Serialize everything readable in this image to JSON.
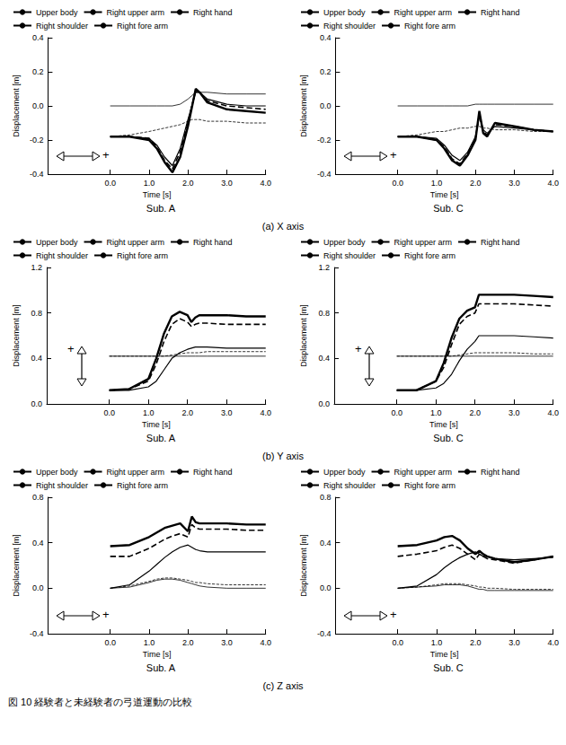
{
  "caption": "図 10 経験者と未経験者の弓道運動の比較",
  "row_captions": [
    "(a) X axis",
    "(b) Y axis",
    "(c) Z axis"
  ],
  "chart_data": [
    {
      "type": "line",
      "title": "Sub. A",
      "x_label": "Time [s]",
      "y_label": "Displacement [m]",
      "annotation": "+",
      "legend": "top",
      "grid": false,
      "x": [
        0,
        0.5,
        1.0,
        1.2,
        1.4,
        1.6,
        1.8,
        2.0,
        2.1,
        2.2,
        2.3,
        2.5,
        3.0,
        3.5,
        4.0
      ],
      "xlim": [
        -1.6,
        4.0
      ],
      "xticks": [
        {
          "value": 0,
          "label": "0.0"
        },
        {
          "value": 1,
          "label": "1.0"
        },
        {
          "value": 2,
          "label": "2.0"
        },
        {
          "value": 3,
          "label": "3.0"
        },
        {
          "value": 4,
          "label": "4.0"
        }
      ],
      "ylim": [
        -0.4,
        0.4
      ],
      "yticks": [
        -0.4,
        -0.2,
        {
          "value": 0,
          "label": "0.0"
        },
        0.2,
        0.4
      ],
      "series": [
        {
          "name": "Upper body",
          "color": "#000000",
          "line_style": "solid",
          "values": [
            0,
            0,
            0,
            0,
            0,
            0,
            0.01,
            0.04,
            0.06,
            0.08,
            0.08,
            0.08,
            0.07,
            0.07,
            0.07
          ]
        },
        {
          "name": "Right upper arm",
          "color": "#000000",
          "line_style": "solid",
          "values": [
            -0.18,
            -0.18,
            -0.19,
            -0.23,
            -0.3,
            -0.35,
            -0.25,
            -0.08,
            0.0,
            0.08,
            0.08,
            0.04,
            0.01,
            0.0,
            0.0
          ]
        },
        {
          "name": "Right hand",
          "color": "#000000",
          "line_style": "solid",
          "values": [
            -0.18,
            -0.18,
            -0.2,
            -0.25,
            -0.33,
            -0.39,
            -0.3,
            -0.12,
            -0.01,
            0.1,
            0.08,
            0.02,
            -0.02,
            -0.03,
            -0.04
          ]
        },
        {
          "name": "Right shoulder",
          "color": "#000000",
          "line_style": "dashed",
          "values": [
            -0.18,
            -0.17,
            -0.15,
            -0.14,
            -0.13,
            -0.12,
            -0.11,
            -0.09,
            -0.08,
            -0.08,
            -0.08,
            -0.09,
            -0.09,
            -0.1,
            -0.1
          ]
        },
        {
          "name": "Right fore arm",
          "color": "#000000",
          "line_style": "dashed",
          "values": [
            -0.18,
            -0.18,
            -0.19,
            -0.24,
            -0.32,
            -0.37,
            -0.27,
            -0.1,
            0.0,
            0.09,
            0.08,
            0.03,
            0.0,
            -0.01,
            -0.02
          ]
        }
      ]
    },
    {
      "type": "line",
      "title": "Sub. C",
      "x_label": "Time [s]",
      "y_label": "Displacement [m]",
      "annotation": "+",
      "legend": "top",
      "grid": false,
      "x": [
        0,
        0.5,
        1.0,
        1.2,
        1.4,
        1.6,
        1.8,
        2.0,
        2.1,
        2.2,
        2.3,
        2.5,
        3.0,
        3.5,
        4.0
      ],
      "xlim": [
        -1.6,
        4.0
      ],
      "xticks": [
        {
          "value": 0,
          "label": "0.0"
        },
        {
          "value": 1,
          "label": "1.0"
        },
        {
          "value": 2,
          "label": "2.0"
        },
        {
          "value": 3,
          "label": "3.0"
        },
        {
          "value": 4,
          "label": "4.0"
        }
      ],
      "ylim": [
        -0.4,
        0.4
      ],
      "yticks": [
        -0.4,
        -0.2,
        {
          "value": 0,
          "label": "0.0"
        },
        0.2,
        0.4
      ],
      "series": [
        {
          "name": "Upper body",
          "color": "#000000",
          "line_style": "solid",
          "values": [
            0,
            0,
            0,
            0,
            0,
            0,
            0,
            0.01,
            0.01,
            0.01,
            0.01,
            0.01,
            0.01,
            0.01,
            0.01
          ]
        },
        {
          "name": "Right upper arm",
          "color": "#000000",
          "line_style": "solid",
          "values": [
            -0.18,
            -0.18,
            -0.19,
            -0.23,
            -0.29,
            -0.32,
            -0.27,
            -0.18,
            -0.06,
            -0.14,
            -0.16,
            -0.12,
            -0.13,
            -0.14,
            -0.15
          ]
        },
        {
          "name": "Right hand",
          "color": "#000000",
          "line_style": "solid",
          "values": [
            -0.18,
            -0.18,
            -0.2,
            -0.25,
            -0.32,
            -0.35,
            -0.29,
            -0.2,
            -0.03,
            -0.16,
            -0.18,
            -0.1,
            -0.12,
            -0.14,
            -0.15
          ]
        },
        {
          "name": "Right shoulder",
          "color": "#000000",
          "line_style": "dashed",
          "values": [
            -0.18,
            -0.17,
            -0.15,
            -0.15,
            -0.14,
            -0.13,
            -0.13,
            -0.12,
            -0.12,
            -0.13,
            -0.13,
            -0.14,
            -0.14,
            -0.15,
            -0.15
          ]
        },
        {
          "name": "Right fore arm",
          "color": "#000000",
          "line_style": "dashed",
          "values": [
            -0.18,
            -0.18,
            -0.2,
            -0.24,
            -0.31,
            -0.34,
            -0.28,
            -0.19,
            -0.05,
            -0.15,
            -0.17,
            -0.11,
            -0.12,
            -0.14,
            -0.15
          ]
        }
      ]
    },
    {
      "type": "line",
      "title": "Sub. A",
      "x_label": "Time [s]",
      "y_label": "Displacement [m]",
      "annotation": "+",
      "legend": "top",
      "grid": false,
      "x": [
        0,
        0.5,
        1.0,
        1.2,
        1.4,
        1.6,
        1.8,
        2.0,
        2.1,
        2.2,
        2.3,
        2.5,
        3.0,
        3.5,
        4.0
      ],
      "xlim": [
        -1.6,
        4.0
      ],
      "xticks": [
        {
          "value": 0,
          "label": "0.0"
        },
        {
          "value": 1,
          "label": "1.0"
        },
        {
          "value": 2,
          "label": "2.0"
        },
        {
          "value": 3,
          "label": "3.0"
        },
        {
          "value": 4,
          "label": "4.0"
        }
      ],
      "ylim": [
        0,
        1.2
      ],
      "yticks": [
        {
          "value": 0,
          "label": "0.0"
        },
        0.4,
        0.8,
        1.2
      ],
      "series": [
        {
          "name": "Upper body",
          "color": "#000000",
          "line_style": "solid",
          "values": [
            0.42,
            0.42,
            0.42,
            0.42,
            0.42,
            0.42,
            0.42,
            0.42,
            0.42,
            0.42,
            0.42,
            0.42,
            0.42,
            0.42,
            0.42
          ]
        },
        {
          "name": "Right upper arm",
          "color": "#000000",
          "line_style": "solid",
          "values": [
            0.12,
            0.12,
            0.15,
            0.2,
            0.3,
            0.4,
            0.45,
            0.48,
            0.49,
            0.5,
            0.5,
            0.5,
            0.49,
            0.49,
            0.49
          ]
        },
        {
          "name": "Right hand",
          "color": "#000000",
          "line_style": "solid",
          "values": [
            0.12,
            0.13,
            0.22,
            0.4,
            0.62,
            0.77,
            0.81,
            0.78,
            0.72,
            0.76,
            0.78,
            0.78,
            0.78,
            0.77,
            0.77
          ]
        },
        {
          "name": "Right shoulder",
          "color": "#000000",
          "line_style": "dashed",
          "values": [
            0.42,
            0.42,
            0.42,
            0.42,
            0.42,
            0.43,
            0.44,
            0.45,
            0.45,
            0.45,
            0.45,
            0.46,
            0.46,
            0.46,
            0.46
          ]
        },
        {
          "name": "Right fore arm",
          "color": "#000000",
          "line_style": "dashed",
          "values": [
            0.12,
            0.13,
            0.2,
            0.35,
            0.55,
            0.7,
            0.75,
            0.72,
            0.68,
            0.7,
            0.71,
            0.71,
            0.7,
            0.7,
            0.7
          ]
        }
      ]
    },
    {
      "type": "line",
      "title": "Sub. C",
      "x_label": "Time [s]",
      "y_label": "Displacement [m]",
      "annotation": "+",
      "legend": "top",
      "grid": false,
      "x": [
        0,
        0.5,
        1.0,
        1.2,
        1.4,
        1.6,
        1.8,
        2.0,
        2.1,
        2.2,
        2.3,
        2.5,
        3.0,
        3.5,
        4.0
      ],
      "xlim": [
        -1.6,
        4.0
      ],
      "xticks": [
        {
          "value": 0,
          "label": "0.0"
        },
        {
          "value": 1,
          "label": "1.0"
        },
        {
          "value": 2,
          "label": "2.0"
        },
        {
          "value": 3,
          "label": "3.0"
        },
        {
          "value": 4,
          "label": "4.0"
        }
      ],
      "ylim": [
        0,
        1.2
      ],
      "yticks": [
        {
          "value": 0,
          "label": "0.0"
        },
        0.4,
        0.8,
        1.2
      ],
      "series": [
        {
          "name": "Upper body",
          "color": "#000000",
          "line_style": "solid",
          "values": [
            0.42,
            0.42,
            0.42,
            0.42,
            0.42,
            0.42,
            0.42,
            0.42,
            0.42,
            0.42,
            0.42,
            0.42,
            0.42,
            0.42,
            0.42
          ]
        },
        {
          "name": "Right upper arm",
          "color": "#000000",
          "line_style": "solid",
          "values": [
            0.12,
            0.12,
            0.14,
            0.18,
            0.26,
            0.38,
            0.48,
            0.55,
            0.6,
            0.6,
            0.6,
            0.6,
            0.6,
            0.59,
            0.58
          ]
        },
        {
          "name": "Right hand",
          "color": "#000000",
          "line_style": "solid",
          "values": [
            0.12,
            0.12,
            0.2,
            0.36,
            0.58,
            0.75,
            0.82,
            0.85,
            0.96,
            0.96,
            0.96,
            0.96,
            0.96,
            0.95,
            0.94
          ]
        },
        {
          "name": "Right shoulder",
          "color": "#000000",
          "line_style": "dashed",
          "values": [
            0.42,
            0.42,
            0.42,
            0.42,
            0.42,
            0.43,
            0.44,
            0.45,
            0.45,
            0.45,
            0.45,
            0.45,
            0.45,
            0.44,
            0.44
          ]
        },
        {
          "name": "Right fore arm",
          "color": "#000000",
          "line_style": "dashed",
          "values": [
            0.12,
            0.12,
            0.2,
            0.32,
            0.52,
            0.7,
            0.77,
            0.8,
            0.88,
            0.88,
            0.88,
            0.88,
            0.88,
            0.87,
            0.86
          ]
        }
      ]
    },
    {
      "type": "line",
      "title": "Sub. A",
      "x_label": "Time [s]",
      "y_label": "Displacement [m]",
      "annotation": "+",
      "legend": "top",
      "grid": false,
      "x": [
        0,
        0.5,
        1.0,
        1.2,
        1.4,
        1.6,
        1.8,
        2.0,
        2.1,
        2.2,
        2.3,
        2.5,
        3.0,
        3.5,
        4.0
      ],
      "xlim": [
        -1.6,
        4.0
      ],
      "xticks": [
        {
          "value": 0,
          "label": "0.0"
        },
        {
          "value": 1,
          "label": "1.0"
        },
        {
          "value": 2,
          "label": "2.0"
        },
        {
          "value": 3,
          "label": "3.0"
        },
        {
          "value": 4,
          "label": "4.0"
        }
      ],
      "ylim": [
        -0.4,
        0.8
      ],
      "yticks": [
        -0.4,
        {
          "value": 0,
          "label": "0.0"
        },
        0.4,
        0.8
      ],
      "series": [
        {
          "name": "Upper body",
          "color": "#000000",
          "line_style": "solid",
          "values": [
            0,
            0.01,
            0.05,
            0.07,
            0.08,
            0.08,
            0.07,
            0.05,
            0.04,
            0.03,
            0.02,
            0.01,
            0.0,
            0.0,
            0.0
          ]
        },
        {
          "name": "Right upper arm",
          "color": "#000000",
          "line_style": "solid",
          "values": [
            0,
            0.03,
            0.15,
            0.21,
            0.27,
            0.32,
            0.36,
            0.38,
            0.36,
            0.34,
            0.33,
            0.32,
            0.32,
            0.32,
            0.32
          ]
        },
        {
          "name": "Right hand",
          "color": "#000000",
          "line_style": "solid",
          "values": [
            0.37,
            0.38,
            0.45,
            0.49,
            0.53,
            0.55,
            0.57,
            0.5,
            0.63,
            0.58,
            0.57,
            0.57,
            0.57,
            0.56,
            0.56
          ]
        },
        {
          "name": "Right shoulder",
          "color": "#000000",
          "line_style": "dashed",
          "values": [
            0,
            0.02,
            0.06,
            0.08,
            0.09,
            0.09,
            0.08,
            0.07,
            0.06,
            0.05,
            0.05,
            0.04,
            0.03,
            0.03,
            0.03
          ]
        },
        {
          "name": "Right fore arm",
          "color": "#000000",
          "line_style": "dashed",
          "values": [
            0.28,
            0.28,
            0.35,
            0.39,
            0.43,
            0.46,
            0.48,
            0.45,
            0.56,
            0.53,
            0.52,
            0.52,
            0.52,
            0.51,
            0.51
          ]
        }
      ]
    },
    {
      "type": "line",
      "title": "Sub. C",
      "x_label": "Time [s]",
      "y_label": "Displacement [m]",
      "annotation": "+",
      "legend": "top",
      "grid": false,
      "x": [
        0,
        0.5,
        1.0,
        1.2,
        1.4,
        1.6,
        1.8,
        2.0,
        2.1,
        2.2,
        2.3,
        2.5,
        3.0,
        3.5,
        4.0
      ],
      "xlim": [
        -1.6,
        4.0
      ],
      "xticks": [
        {
          "value": 0,
          "label": "0.0"
        },
        {
          "value": 1,
          "label": "1.0"
        },
        {
          "value": 2,
          "label": "2.0"
        },
        {
          "value": 3,
          "label": "3.0"
        },
        {
          "value": 4,
          "label": "4.0"
        }
      ],
      "ylim": [
        -0.4,
        0.8
      ],
      "yticks": [
        -0.4,
        {
          "value": 0,
          "label": "0.0"
        },
        0.4,
        0.8
      ],
      "series": [
        {
          "name": "Upper body",
          "color": "#000000",
          "line_style": "solid",
          "values": [
            0,
            0.01,
            0.02,
            0.03,
            0.03,
            0.03,
            0.02,
            0.0,
            -0.01,
            -0.01,
            -0.02,
            -0.02,
            -0.02,
            -0.02,
            -0.02
          ]
        },
        {
          "name": "Right upper arm",
          "color": "#000000",
          "line_style": "solid",
          "values": [
            0,
            0.02,
            0.12,
            0.18,
            0.23,
            0.27,
            0.3,
            0.32,
            0.3,
            0.28,
            0.28,
            0.26,
            0.25,
            0.26,
            0.27
          ]
        },
        {
          "name": "Right hand",
          "color": "#000000",
          "line_style": "solid",
          "values": [
            0.37,
            0.38,
            0.42,
            0.45,
            0.46,
            0.42,
            0.35,
            0.3,
            0.33,
            0.3,
            0.28,
            0.26,
            0.23,
            0.25,
            0.28
          ]
        },
        {
          "name": "Right shoulder",
          "color": "#000000",
          "line_style": "dashed",
          "values": [
            0,
            0.01,
            0.03,
            0.04,
            0.04,
            0.04,
            0.03,
            0.02,
            0.01,
            0.01,
            0.0,
            0.0,
            -0.01,
            -0.01,
            -0.01
          ]
        },
        {
          "name": "Right fore arm",
          "color": "#000000",
          "line_style": "dashed",
          "values": [
            0.28,
            0.3,
            0.33,
            0.36,
            0.38,
            0.35,
            0.3,
            0.25,
            0.3,
            0.28,
            0.26,
            0.25,
            0.22,
            0.25,
            0.28
          ]
        }
      ]
    }
  ]
}
